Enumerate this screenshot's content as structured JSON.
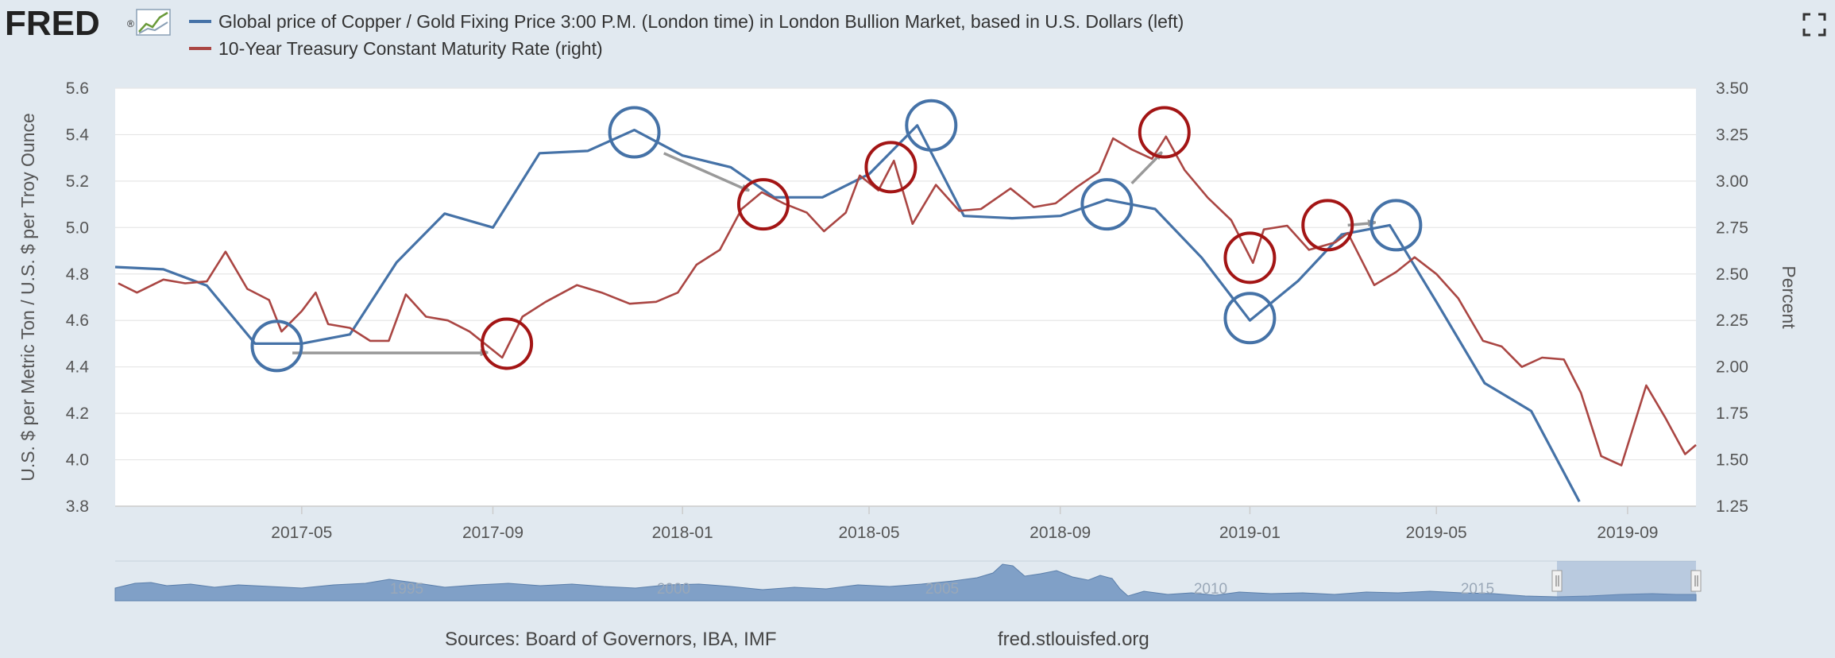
{
  "header": {
    "logo_text": "FRED",
    "logo_mark": "®",
    "legend": [
      {
        "label": "Global price of Copper / Gold Fixing Price 3:00 P.M. (London time) in London Bullion Market, based in U.S. Dollars (left)",
        "color": "#4572a7"
      },
      {
        "label": "10-Year Treasury Constant Maturity Rate (right)",
        "color": "#aa4643"
      }
    ],
    "fullscreen_icon": "expand-icon"
  },
  "footer": {
    "sources": "Sources: Board of Governors, IBA, IMF",
    "site": "fred.stlouisfed.org"
  },
  "navigator": {
    "labels": [
      "1995",
      "2000",
      "2005",
      "2010",
      "2015"
    ]
  },
  "chart_data": {
    "type": "line",
    "title": "",
    "xlabel": "",
    "x_ticks": [
      "2017-05",
      "2017-09",
      "2018-01",
      "2018-05",
      "2018-09",
      "2019-01",
      "2019-05",
      "2019-09"
    ],
    "x_range": [
      "2017-01-01",
      "2019-10-15"
    ],
    "y_left": {
      "label": "U.S. $ per Metric Ton / U.S. $ per Troy Ounce",
      "lim": [
        3.8,
        5.6
      ],
      "ticks": [
        "3.8",
        "4.0",
        "4.2",
        "4.4",
        "4.6",
        "4.8",
        "5.0",
        "5.2",
        "5.4",
        "5.6"
      ]
    },
    "y_right": {
      "label": "Percent",
      "lim": [
        1.25,
        3.5
      ],
      "ticks": [
        "1.25",
        "1.50",
        "1.75",
        "2.00",
        "2.25",
        "2.50",
        "2.75",
        "3.00",
        "3.25",
        "3.50"
      ]
    },
    "grid": true,
    "legend_position": "top-left",
    "series": [
      {
        "name": "Global price of Copper / Gold Fixing Price 3:00 P.M. (London time) in London Bullion Market, based in U.S. Dollars (left)",
        "axis": "left",
        "color": "#4572a7",
        "points": [
          [
            "2017-01-01",
            4.83
          ],
          [
            "2017-02-01",
            4.82
          ],
          [
            "2017-03-01",
            4.75
          ],
          [
            "2017-04-01",
            4.5
          ],
          [
            "2017-05-01",
            4.5
          ],
          [
            "2017-06-01",
            4.54
          ],
          [
            "2017-07-01",
            4.85
          ],
          [
            "2017-08-01",
            5.06
          ],
          [
            "2017-09-01",
            5.0
          ],
          [
            "2017-10-01",
            5.32
          ],
          [
            "2017-11-01",
            5.33
          ],
          [
            "2017-12-01",
            5.42
          ],
          [
            "2018-01-01",
            5.31
          ],
          [
            "2018-02-01",
            5.26
          ],
          [
            "2018-03-01",
            5.13
          ],
          [
            "2018-04-01",
            5.13
          ],
          [
            "2018-05-01",
            5.23
          ],
          [
            "2018-06-01",
            5.44
          ],
          [
            "2018-07-01",
            5.05
          ],
          [
            "2018-08-01",
            5.04
          ],
          [
            "2018-09-01",
            5.05
          ],
          [
            "2018-10-01",
            5.12
          ],
          [
            "2018-11-01",
            5.08
          ],
          [
            "2018-12-01",
            4.87
          ],
          [
            "2019-01-01",
            4.6
          ],
          [
            "2019-02-01",
            4.77
          ],
          [
            "2019-03-01",
            4.97
          ],
          [
            "2019-04-01",
            5.01
          ],
          [
            "2019-05-01",
            4.68
          ],
          [
            "2019-06-01",
            4.33
          ],
          [
            "2019-07-01",
            4.21
          ],
          [
            "2019-08-01",
            3.82
          ]
        ]
      },
      {
        "name": "10-Year Treasury Constant Maturity Rate (right)",
        "axis": "right",
        "color": "#aa4643",
        "points": [
          [
            "2017-01-03",
            2.45
          ],
          [
            "2017-01-15",
            2.4
          ],
          [
            "2017-02-01",
            2.47
          ],
          [
            "2017-02-15",
            2.45
          ],
          [
            "2017-03-01",
            2.46
          ],
          [
            "2017-03-13",
            2.62
          ],
          [
            "2017-03-27",
            2.42
          ],
          [
            "2017-04-10",
            2.36
          ],
          [
            "2017-04-18",
            2.19
          ],
          [
            "2017-05-01",
            2.3
          ],
          [
            "2017-05-10",
            2.4
          ],
          [
            "2017-05-18",
            2.23
          ],
          [
            "2017-06-01",
            2.21
          ],
          [
            "2017-06-14",
            2.14
          ],
          [
            "2017-06-26",
            2.14
          ],
          [
            "2017-07-07",
            2.39
          ],
          [
            "2017-07-20",
            2.27
          ],
          [
            "2017-08-03",
            2.25
          ],
          [
            "2017-08-17",
            2.19
          ],
          [
            "2017-09-07",
            2.05
          ],
          [
            "2017-09-20",
            2.27
          ],
          [
            "2017-10-05",
            2.35
          ],
          [
            "2017-10-25",
            2.44
          ],
          [
            "2017-11-10",
            2.4
          ],
          [
            "2017-11-28",
            2.34
          ],
          [
            "2017-12-15",
            2.35
          ],
          [
            "2017-12-29",
            2.4
          ],
          [
            "2018-01-10",
            2.55
          ],
          [
            "2018-01-25",
            2.63
          ],
          [
            "2018-02-08",
            2.85
          ],
          [
            "2018-02-21",
            2.94
          ],
          [
            "2018-03-07",
            2.88
          ],
          [
            "2018-03-22",
            2.83
          ],
          [
            "2018-04-02",
            2.73
          ],
          [
            "2018-04-16",
            2.83
          ],
          [
            "2018-04-25",
            3.03
          ],
          [
            "2018-05-07",
            2.95
          ],
          [
            "2018-05-17",
            3.11
          ],
          [
            "2018-05-29",
            2.77
          ],
          [
            "2018-06-13",
            2.98
          ],
          [
            "2018-06-28",
            2.84
          ],
          [
            "2018-07-12",
            2.85
          ],
          [
            "2018-07-31",
            2.96
          ],
          [
            "2018-08-15",
            2.86
          ],
          [
            "2018-08-29",
            2.88
          ],
          [
            "2018-09-12",
            2.97
          ],
          [
            "2018-09-26",
            3.05
          ],
          [
            "2018-10-05",
            3.23
          ],
          [
            "2018-10-17",
            3.17
          ],
          [
            "2018-10-30",
            3.12
          ],
          [
            "2018-11-08",
            3.24
          ],
          [
            "2018-11-20",
            3.06
          ],
          [
            "2018-12-05",
            2.91
          ],
          [
            "2018-12-20",
            2.79
          ],
          [
            "2019-01-03",
            2.56
          ],
          [
            "2019-01-10",
            2.74
          ],
          [
            "2019-01-25",
            2.76
          ],
          [
            "2019-02-08",
            2.63
          ],
          [
            "2019-02-25",
            2.67
          ],
          [
            "2019-03-05",
            2.72
          ],
          [
            "2019-03-22",
            2.44
          ],
          [
            "2019-04-05",
            2.51
          ],
          [
            "2019-04-17",
            2.59
          ],
          [
            "2019-05-01",
            2.5
          ],
          [
            "2019-05-15",
            2.37
          ],
          [
            "2019-05-31",
            2.14
          ],
          [
            "2019-06-12",
            2.11
          ],
          [
            "2019-06-25",
            2.0
          ],
          [
            "2019-07-08",
            2.05
          ],
          [
            "2019-07-22",
            2.04
          ],
          [
            "2019-08-02",
            1.86
          ],
          [
            "2019-08-15",
            1.52
          ],
          [
            "2019-08-28",
            1.47
          ],
          [
            "2019-09-13",
            1.9
          ],
          [
            "2019-09-25",
            1.73
          ],
          [
            "2019-10-08",
            1.53
          ],
          [
            "2019-10-15",
            1.58
          ]
        ]
      }
    ],
    "annotations": {
      "blue_circles": [
        [
          "2017-04-15",
          4.49
        ],
        [
          "2017-12-01",
          5.41
        ],
        [
          "2018-06-10",
          5.44
        ],
        [
          "2018-10-01",
          5.1
        ],
        [
          "2019-01-01",
          4.61
        ],
        [
          "2019-04-05",
          5.01
        ]
      ],
      "red_circles": [
        [
          "2017-09-10",
          4.5
        ],
        [
          "2018-02-22",
          5.1
        ],
        [
          "2018-05-15",
          5.26
        ],
        [
          "2018-11-07",
          5.41
        ],
        [
          "2019-01-01",
          4.87
        ],
        [
          "2019-02-20",
          5.01
        ]
      ],
      "arrows": [
        [
          [
            "2017-04-25",
            4.46
          ],
          [
            "2017-08-28",
            4.46
          ]
        ],
        [
          [
            "2017-12-20",
            5.32
          ],
          [
            "2018-02-12",
            5.16
          ]
        ],
        [
          [
            "2018-10-17",
            5.19
          ],
          [
            "2018-11-05",
            5.32
          ]
        ],
        [
          [
            "2019-03-05",
            5.01
          ],
          [
            "2019-03-22",
            5.02
          ]
        ]
      ]
    }
  }
}
